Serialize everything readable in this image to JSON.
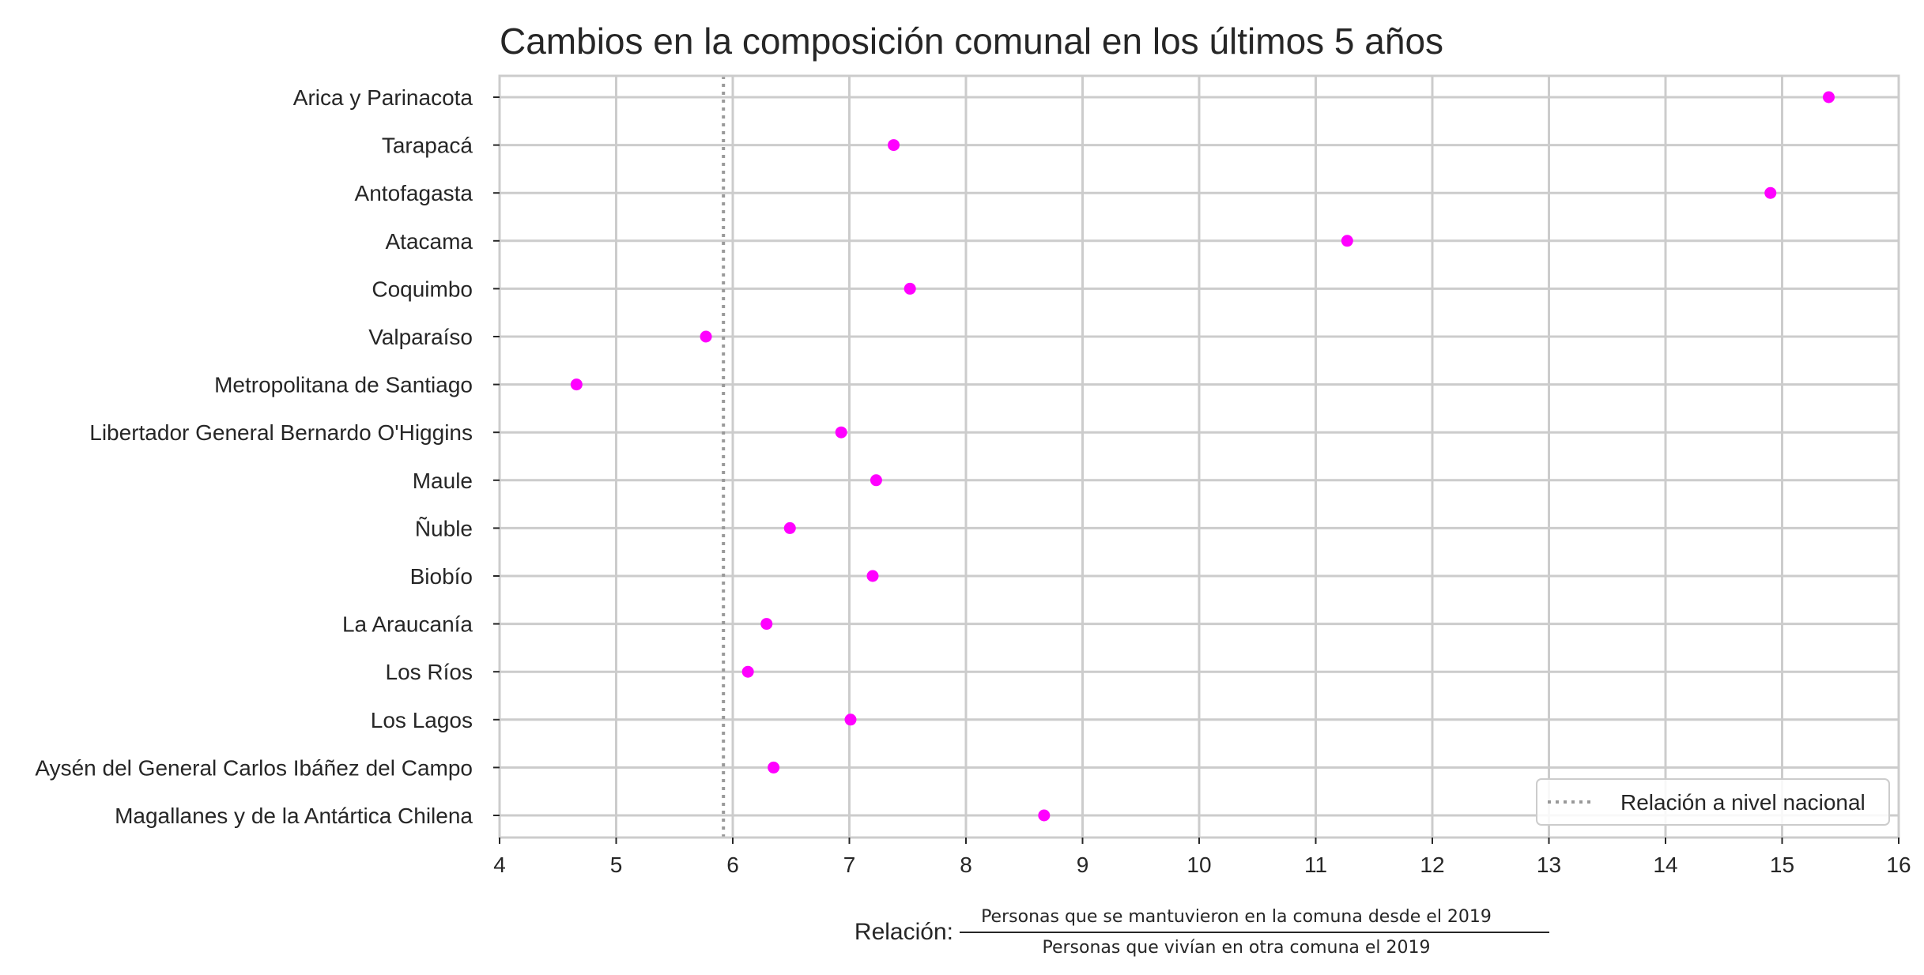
{
  "chart_data": {
    "type": "scatter",
    "title": "Cambios en la composición comunal en los últimos 5 años",
    "xlabel_prefix": "Relación:",
    "xlabel_numerator": "Personas que se mantuvieron en la comuna desde el 2019",
    "xlabel_denominator": "Personas que vivían en otra comuna el 2019",
    "categories": [
      "Arica y Parinacota",
      "Tarapacá",
      "Antofagasta",
      "Atacama",
      "Coquimbo",
      "Valparaíso",
      "Metropolitana de Santiago",
      "Libertador General Bernardo O'Higgins",
      "Maule",
      "Ñuble",
      "Biobío",
      "La Araucanía",
      "Los Ríos",
      "Los Lagos",
      "Aysén del General Carlos Ibáñez del Campo",
      "Magallanes y de la Antártica Chilena"
    ],
    "values": [
      15.4,
      7.38,
      14.9,
      11.27,
      7.52,
      5.77,
      4.66,
      6.93,
      7.23,
      6.49,
      7.2,
      6.29,
      6.13,
      7.01,
      6.35,
      8.67
    ],
    "reference_line": {
      "value": 5.92,
      "label": "Relación a nivel nacional",
      "style": "dotted"
    },
    "xlim": [
      4,
      16
    ],
    "xticks": [
      "4",
      "5",
      "6",
      "7",
      "8",
      "9",
      "10",
      "11",
      "12",
      "13",
      "14",
      "15",
      "16"
    ],
    "grid": true,
    "legend_position": "lower-right",
    "colors": {
      "point": "#ff00ff",
      "reference": "#999999",
      "grid": "#cccccc",
      "frame": "#cccccc"
    }
  }
}
